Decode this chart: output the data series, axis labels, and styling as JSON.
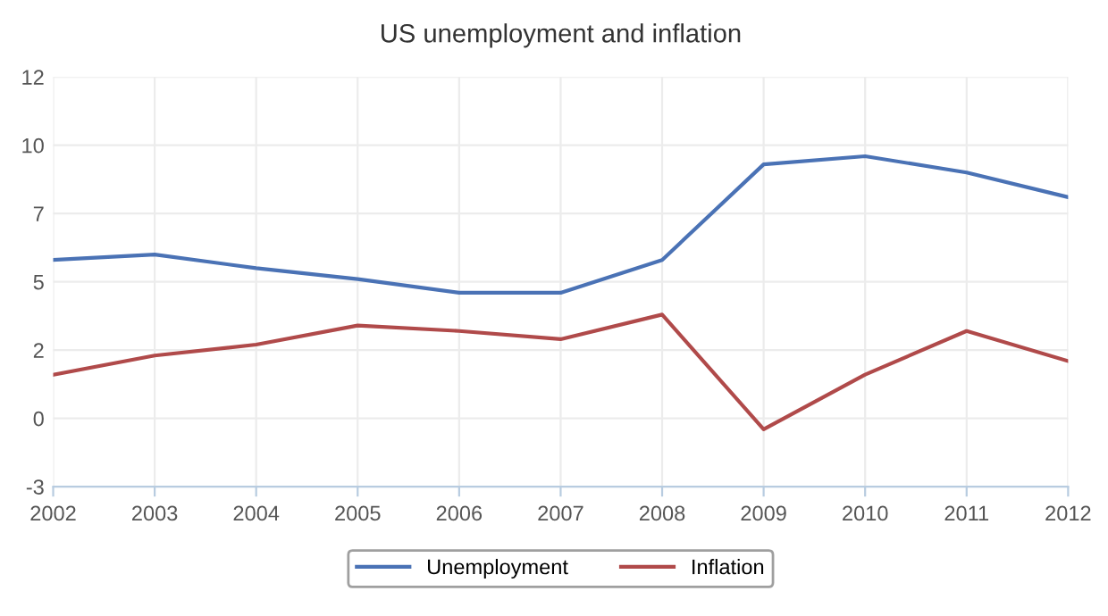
{
  "chart_data": {
    "type": "line",
    "title": "US unemployment and inflation",
    "x": [
      2002,
      2003,
      2004,
      2005,
      2006,
      2007,
      2008,
      2009,
      2010,
      2011,
      2012
    ],
    "series": [
      {
        "name": "Unemployment",
        "color": "#4a72b5",
        "values": [
          5.8,
          6.0,
          5.5,
          5.1,
          4.6,
          4.6,
          5.8,
          9.3,
          9.6,
          9.0,
          8.1
        ]
      },
      {
        "name": "Inflation",
        "color": "#b04a4a",
        "values": [
          1.6,
          2.3,
          2.7,
          3.4,
          3.2,
          2.9,
          3.8,
          -0.4,
          1.6,
          3.2,
          2.1
        ]
      }
    ],
    "xlim": [
      2002,
      2012
    ],
    "xticks": [
      2002,
      2003,
      2004,
      2005,
      2006,
      2007,
      2008,
      2009,
      2010,
      2011,
      2012
    ],
    "ylim": [
      -2.5,
      12.5
    ],
    "yticks": [
      {
        "value": -2.5,
        "label": "-3"
      },
      0,
      {
        "value": 2.5,
        "label": "2"
      },
      5,
      {
        "value": 7.5,
        "label": "7"
      },
      10,
      {
        "value": 12.5,
        "label": "12"
      }
    ],
    "grid": true,
    "legend": "bottom",
    "marker": "none",
    "line_style": "solid"
  }
}
